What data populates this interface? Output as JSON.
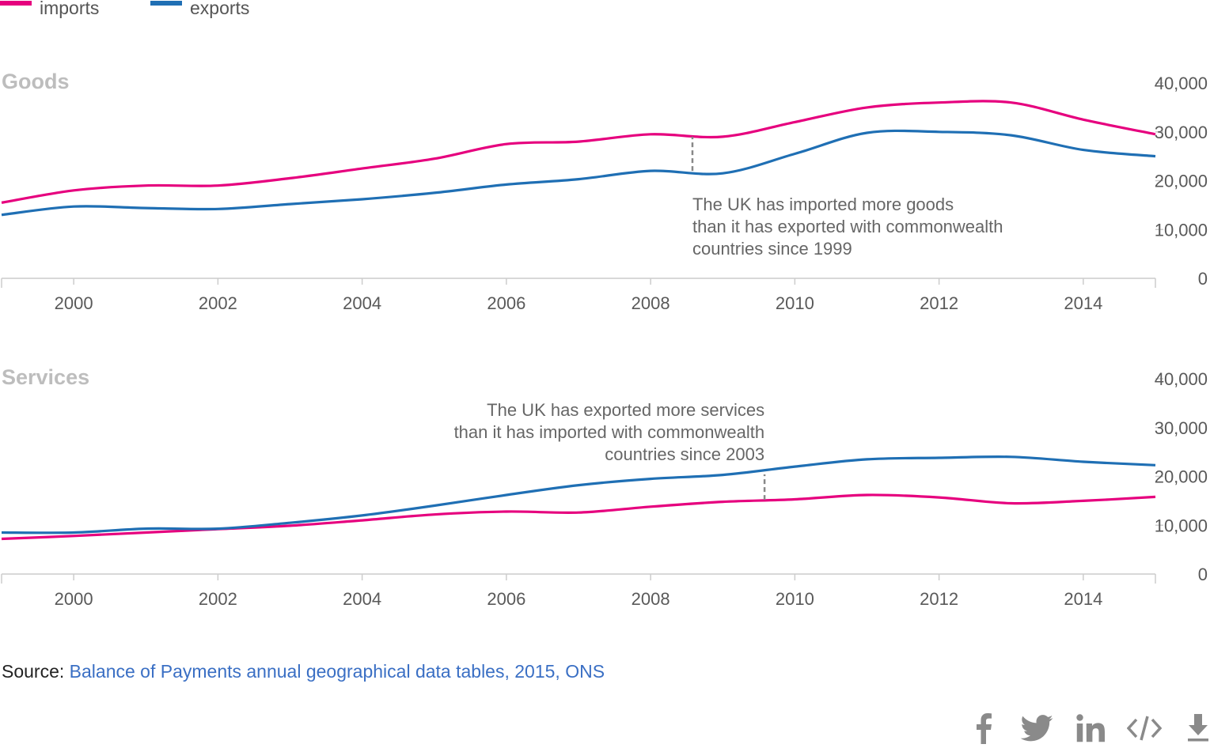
{
  "legend": [
    {
      "label": "imports",
      "color": "#e6007e"
    },
    {
      "label": "exports",
      "color": "#1f6fb4"
    }
  ],
  "chart_data": [
    {
      "type": "line",
      "title": "Goods",
      "x": [
        1999,
        2000,
        2001,
        2002,
        2003,
        2004,
        2005,
        2006,
        2007,
        2008,
        2009,
        2010,
        2011,
        2012,
        2013,
        2014,
        2015
      ],
      "series": [
        {
          "name": "imports",
          "color": "#e6007e",
          "values": [
            15500,
            18000,
            19000,
            19000,
            20500,
            22500,
            24500,
            27500,
            28000,
            29500,
            29000,
            32000,
            35000,
            36000,
            36000,
            32500,
            29500
          ]
        },
        {
          "name": "exports",
          "color": "#1f6fb4",
          "values": [
            13000,
            14700,
            14400,
            14200,
            15200,
            16200,
            17500,
            19200,
            20300,
            22000,
            21500,
            25500,
            29800,
            30000,
            29300,
            26300,
            25000
          ]
        }
      ],
      "xticks": [
        "2000",
        "2002",
        "2004",
        "2006",
        "2008",
        "2010",
        "2012",
        "2014"
      ],
      "yticks": [
        "0",
        "10,000",
        "20,000",
        "30,000",
        "40,000"
      ],
      "ylim": [
        0,
        40000
      ],
      "xlim": [
        1999,
        2015
      ],
      "annotation": {
        "lines": [
          "The UK has imported more goods",
          "than it has exported with commonwealth",
          "countries since 1999"
        ],
        "x": 2008.58,
        "y_from": 22000,
        "y_to": 29000,
        "align": "start"
      }
    },
    {
      "type": "line",
      "title": "Services",
      "x": [
        1999,
        2000,
        2001,
        2002,
        2003,
        2004,
        2005,
        2006,
        2007,
        2008,
        2009,
        2010,
        2011,
        2012,
        2013,
        2014,
        2015
      ],
      "series": [
        {
          "name": "imports",
          "color": "#e6007e",
          "values": [
            7200,
            7800,
            8500,
            9200,
            9900,
            11000,
            12200,
            12800,
            12600,
            13800,
            14800,
            15300,
            16200,
            15700,
            14500,
            15000,
            15800
          ]
        },
        {
          "name": "exports",
          "color": "#1f6fb4",
          "values": [
            8500,
            8500,
            9300,
            9300,
            10500,
            12000,
            14000,
            16200,
            18200,
            19500,
            20300,
            22000,
            23500,
            23800,
            24000,
            23000,
            22300
          ]
        }
      ],
      "xticks": [
        "2000",
        "2002",
        "2004",
        "2006",
        "2008",
        "2010",
        "2012",
        "2014"
      ],
      "yticks": [
        "0",
        "10,000",
        "20,000",
        "30,000",
        "40,000"
      ],
      "ylim": [
        0,
        40000
      ],
      "xlim": [
        1999,
        2015
      ],
      "annotation": {
        "lines": [
          "The UK has exported more services",
          "than it has imported with commonwealth",
          "countries since 2003"
        ],
        "x": 2009.58,
        "y_from": 15200,
        "y_to": 20400,
        "align": "end"
      }
    }
  ],
  "source": {
    "prefix": "Source: ",
    "link_text": "Balance of Payments annual geographical data tables, 2015, ONS"
  },
  "share_icons": [
    "facebook-icon",
    "twitter-icon",
    "linkedin-icon",
    "embed-code-icon",
    "download-icon"
  ]
}
